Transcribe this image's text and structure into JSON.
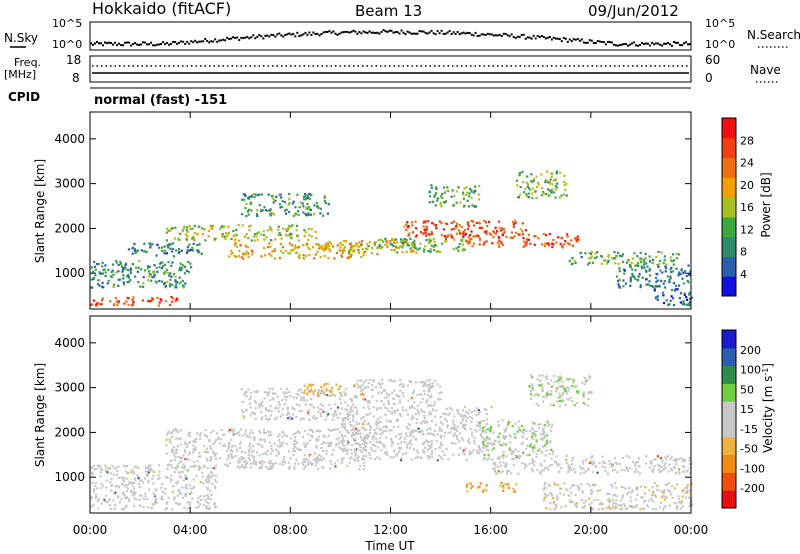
{
  "header": {
    "radar": "Hokkaido (fitACF)",
    "beam": "Beam 13",
    "date": "09/Jun/2012"
  },
  "noise_panel": {
    "left_label": "N.Sky",
    "right_label": "N.Search",
    "left_ticks": [
      "10^5",
      "10^0"
    ],
    "right_ticks": [
      "10^5",
      "10^0"
    ]
  },
  "freq_panel": {
    "left_label_1": "Freq.",
    "left_label_2": "[MHz]",
    "right_label": "Nave",
    "left_ticks": [
      "18",
      "8"
    ],
    "right_ticks": [
      "60",
      "0"
    ]
  },
  "cpid": {
    "label": "CPID",
    "value": "normal (fast) -151"
  },
  "colors": {
    "power_scale": [
      "#1010e0",
      "#2a5fb0",
      "#2f8c6a",
      "#3aa83a",
      "#a8c020",
      "#f0a000",
      "#f07010",
      "#f04010",
      "#f01010"
    ],
    "velocity_scale": [
      "#e81010",
      "#f04e10",
      "#f08a10",
      "#f0b040",
      "#c8c8c8",
      "#c8c8c8",
      "#70d040",
      "#2f8c4a",
      "#2a5fb0",
      "#1a1ad0"
    ]
  },
  "chart_data": [
    {
      "type": "heatmap",
      "name": "power",
      "ylabel": "Slant Range [km]",
      "y_ticks": [
        1000,
        2000,
        3000,
        4000
      ],
      "ylim": [
        200,
        4600
      ],
      "xlim_hours": [
        0,
        24
      ],
      "colorbar_label": "Power [dB]",
      "colorbar_ticks": [
        "4",
        "8",
        "12",
        "16",
        "20",
        "24",
        "28"
      ],
      "clim": [
        0,
        32
      ],
      "scatter_bands": [
        {
          "t0": 0.0,
          "t1": 3.5,
          "r0": 300,
          "r1": 500,
          "level": 26
        },
        {
          "t0": 0.0,
          "t1": 4.0,
          "r0": 700,
          "r1": 1300,
          "level": 10
        },
        {
          "t0": 1.5,
          "t1": 4.5,
          "r0": 1400,
          "r1": 1700,
          "level": 8
        },
        {
          "t0": 3.0,
          "t1": 9.0,
          "r0": 1750,
          "r1": 2100,
          "level": 16
        },
        {
          "t0": 5.5,
          "t1": 11.0,
          "r0": 1350,
          "r1": 1700,
          "level": 20
        },
        {
          "t0": 6.0,
          "t1": 9.5,
          "r0": 2300,
          "r1": 2800,
          "level": 10
        },
        {
          "t0": 9.0,
          "t1": 13.0,
          "r0": 1450,
          "r1": 1750,
          "level": 18
        },
        {
          "t0": 11.0,
          "t1": 15.0,
          "r0": 1500,
          "r1": 1800,
          "level": 14
        },
        {
          "t0": 12.5,
          "t1": 17.5,
          "r0": 1800,
          "r1": 2200,
          "level": 26
        },
        {
          "t0": 15.0,
          "t1": 16.5,
          "r0": 1600,
          "r1": 1800,
          "level": 24
        },
        {
          "t0": 17.0,
          "t1": 19.5,
          "r0": 1600,
          "r1": 1900,
          "level": 26
        },
        {
          "t0": 19.0,
          "t1": 23.5,
          "r0": 1200,
          "r1": 1500,
          "level": 12
        },
        {
          "t0": 17.0,
          "t1": 19.0,
          "r0": 2700,
          "r1": 3300,
          "level": 14
        },
        {
          "t0": 13.5,
          "t1": 15.5,
          "r0": 2500,
          "r1": 3000,
          "level": 12
        },
        {
          "t0": 21.0,
          "t1": 24.0,
          "r0": 700,
          "r1": 1200,
          "level": 8
        },
        {
          "t0": 22.5,
          "t1": 24.0,
          "r0": 300,
          "r1": 700,
          "level": 6
        }
      ]
    },
    {
      "type": "heatmap",
      "name": "velocity",
      "ylabel": "Slant Range [km]",
      "y_ticks": [
        1000,
        2000,
        3000,
        4000
      ],
      "ylim": [
        200,
        4600
      ],
      "xlabel": "Time UT",
      "x_ticks": [
        "00:00",
        "04:00",
        "08:00",
        "12:00",
        "16:00",
        "20:00",
        "00:00"
      ],
      "xlim_hours": [
        0,
        24
      ],
      "colorbar_label": "Velocity [m s^-1]",
      "colorbar_ticks": [
        "-200",
        "-100",
        "-50",
        "-15",
        "15",
        "50",
        "100",
        "200"
      ],
      "clim": [
        -250,
        250
      ],
      "scatter_bands": [
        {
          "t0": 0.0,
          "t1": 5.0,
          "r0": 300,
          "r1": 1300,
          "level": 0
        },
        {
          "t0": 3.0,
          "t1": 11.0,
          "r0": 1200,
          "r1": 2100,
          "level": 0
        },
        {
          "t0": 6.0,
          "t1": 10.5,
          "r0": 2300,
          "r1": 3000,
          "level": 0
        },
        {
          "t0": 8.5,
          "t1": 10.0,
          "r0": 2850,
          "r1": 3150,
          "level": -80
        },
        {
          "t0": 10.0,
          "t1": 16.0,
          "r0": 1400,
          "r1": 2600,
          "level": 0
        },
        {
          "t0": 15.5,
          "t1": 18.5,
          "r0": 1500,
          "r1": 2300,
          "level": 45
        },
        {
          "t0": 17.5,
          "t1": 20.0,
          "r0": 2600,
          "r1": 3300,
          "level": 45
        },
        {
          "t0": 16.0,
          "t1": 24.0,
          "r0": 1100,
          "r1": 1500,
          "level": 0
        },
        {
          "t0": 15.0,
          "t1": 17.0,
          "r0": 700,
          "r1": 900,
          "level": -100
        },
        {
          "t0": 18.0,
          "t1": 24.0,
          "r0": 300,
          "r1": 900,
          "level": -40
        },
        {
          "t0": 10.5,
          "t1": 14.0,
          "r0": 2600,
          "r1": 3200,
          "level": 0
        }
      ]
    }
  ]
}
